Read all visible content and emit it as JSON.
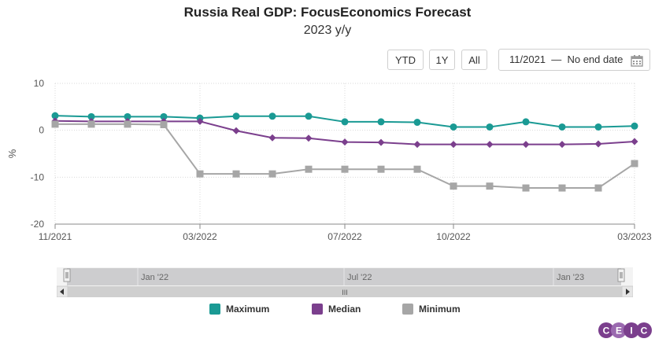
{
  "title": "Russia Real GDP: FocusEconomics Forecast",
  "subtitle": "2023 y/y",
  "controls": {
    "ytd": "YTD",
    "one_year": "1Y",
    "all": "All",
    "date_range": "11/2021  —  No end date"
  },
  "navigator": {
    "labels": [
      "Jan '22",
      "Jul '22",
      "Jan '23"
    ],
    "handle_glyph": "III"
  },
  "logo_text": [
    "C",
    "E",
    "I",
    "C"
  ],
  "colors": {
    "maximum": "#1a9a94",
    "median": "#7b3f8d",
    "minimum": "#a6a6a6",
    "logo": "#7b3f8d"
  },
  "icons": {
    "calendar": "calendar-icon",
    "left": "arrow-left-icon",
    "right": "arrow-right-icon"
  },
  "chart_data": {
    "type": "line",
    "title": "Russia Real GDP: FocusEconomics Forecast",
    "subtitle": "2023 y/y",
    "ylabel": "%",
    "xlabel": "",
    "ylim": [
      -20,
      10
    ],
    "yticks": [
      10,
      0,
      -10,
      -20
    ],
    "xlim": [
      "2021-11",
      "2023-03"
    ],
    "xticks": [
      "11/2021",
      "03/2022",
      "07/2022",
      "10/2022",
      "03/2023"
    ],
    "grid": true,
    "legend_position": "bottom",
    "x": [
      "2021-11",
      "2021-12",
      "2022-01",
      "2022-02",
      "2022-03",
      "2022-04",
      "2022-05",
      "2022-06",
      "2022-07",
      "2022-08",
      "2022-09",
      "2022-10",
      "2022-11",
      "2022-12",
      "2023-01",
      "2023-02",
      "2023-03"
    ],
    "series": [
      {
        "name": "Maximum",
        "marker": "circle",
        "color": "#1a9a94",
        "points": [
          [
            "2021-11",
            3.1
          ],
          [
            "2021-12",
            2.9
          ],
          [
            "2022-01",
            2.9
          ],
          [
            "2022-02",
            2.9
          ],
          [
            "2022-03",
            2.6
          ],
          [
            "2022-04",
            3.0
          ],
          [
            "2022-05",
            3.0
          ],
          [
            "2022-06",
            3.0
          ],
          [
            "2022-07",
            1.8
          ],
          [
            "2022-08",
            1.8
          ],
          [
            "2022-09",
            1.7
          ],
          [
            "2022-10",
            0.7
          ],
          [
            "2022-11",
            0.7
          ],
          [
            "2022-12",
            1.8
          ],
          [
            "2023-01",
            0.7
          ],
          [
            "2023-02",
            0.7
          ],
          [
            "2023-03",
            0.9
          ]
        ]
      },
      {
        "name": "Median",
        "marker": "diamond",
        "color": "#7b3f8d",
        "points": [
          [
            "2021-11",
            2.0
          ],
          [
            "2021-12",
            1.9
          ],
          [
            "2022-01",
            1.9
          ],
          [
            "2022-02",
            1.9
          ],
          [
            "2022-03",
            1.9
          ],
          [
            "2022-04",
            -0.1
          ],
          [
            "2022-05",
            -1.6
          ],
          [
            "2022-06",
            -1.7
          ],
          [
            "2022-07",
            -2.5
          ],
          [
            "2022-08",
            -2.6
          ],
          [
            "2022-09",
            -3.0
          ],
          [
            "2022-10",
            -3.0
          ],
          [
            "2022-11",
            -3.0
          ],
          [
            "2022-12",
            -3.0
          ],
          [
            "2023-01",
            -3.0
          ],
          [
            "2023-02",
            -2.9
          ],
          [
            "2023-03",
            -2.4
          ]
        ]
      },
      {
        "name": "Minimum",
        "marker": "square",
        "color": "#a6a6a6",
        "points": [
          [
            "2021-11",
            1.3
          ],
          [
            "2021-12",
            1.3
          ],
          [
            "2022-01",
            1.3
          ],
          [
            "2022-02",
            1.2
          ],
          [
            "2022-03",
            -9.3
          ],
          [
            "2022-04",
            -9.3
          ],
          [
            "2022-05",
            -9.3
          ],
          [
            "2022-06",
            -8.3
          ],
          [
            "2022-07",
            -8.3
          ],
          [
            "2022-08",
            -8.3
          ],
          [
            "2022-09",
            -8.3
          ],
          [
            "2022-10",
            -11.9
          ],
          [
            "2022-11",
            -11.9
          ],
          [
            "2022-12",
            -12.3
          ],
          [
            "2023-01",
            -12.3
          ],
          [
            "2023-02",
            -12.3
          ],
          [
            "2023-03",
            -7.1
          ]
        ]
      }
    ]
  }
}
